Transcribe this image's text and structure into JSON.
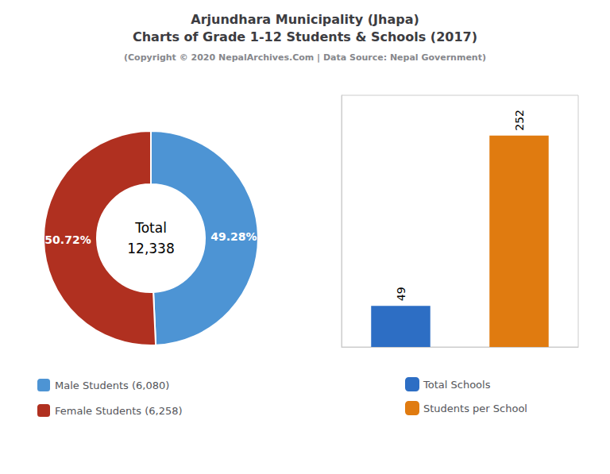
{
  "title": [
    "Arjundhara Municipality (Jhapa)",
    "Charts of Grade 1-12 Students & Schools (2017)"
  ],
  "subtitle": "(Copyright © 2020 NepalArchives.Com | Data Source: Nepal Government)",
  "chart_data": [
    {
      "type": "pie",
      "categories": [
        "Male Students (6,080)",
        "Female Students (6,258)"
      ],
      "values": [
        49.28,
        50.72
      ],
      "value_labels": [
        "49.28%",
        "50.72%"
      ],
      "colors": [
        "#4d94d4",
        "#b03020"
      ],
      "annotations": [
        "Total",
        "12,338"
      ],
      "data_labels": true,
      "legend": "lower left"
    },
    {
      "type": "bar",
      "categories": [
        null,
        null
      ],
      "series": [
        {
          "name": "Total Schools",
          "color": "#2d6ec4",
          "values": [
            49,
            null
          ]
        },
        {
          "name": "Students per School",
          "color": "#e07b10",
          "values": [
            null,
            252
          ]
        }
      ],
      "ylim": [
        0,
        300
      ],
      "data_labels": true,
      "tick_labels": false,
      "grid": false,
      "legend": "lower center"
    }
  ]
}
